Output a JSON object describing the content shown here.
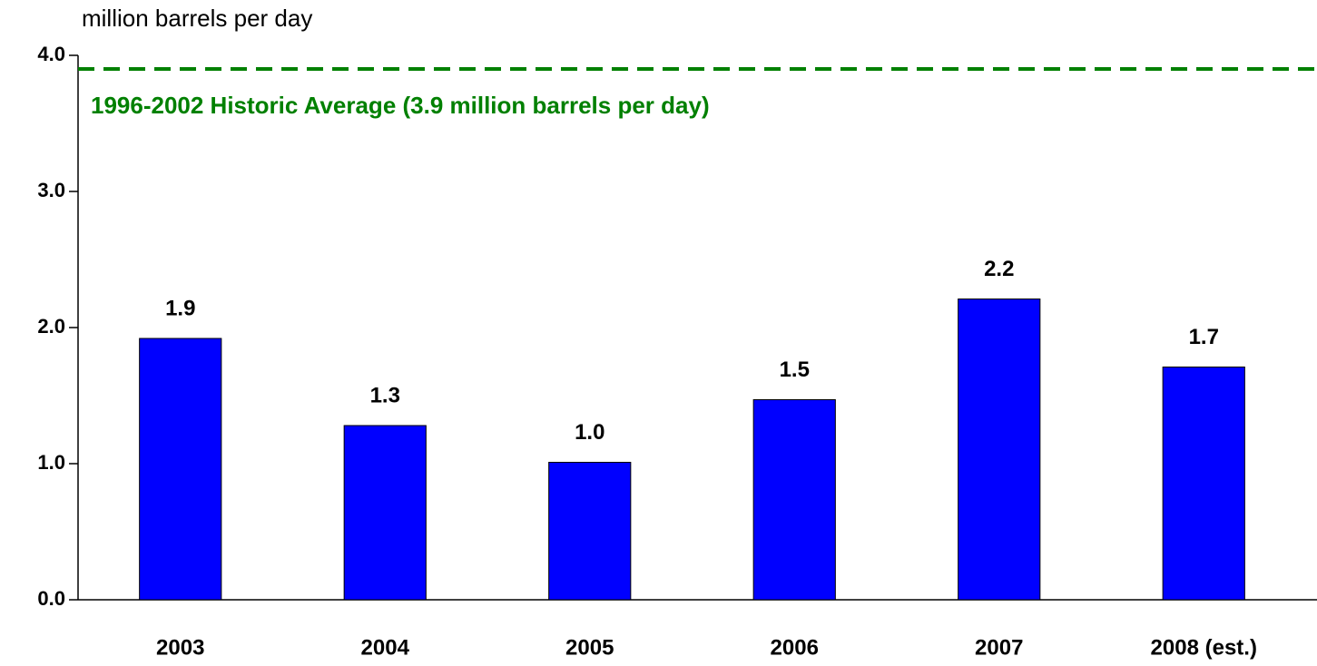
{
  "chart_data": {
    "type": "bar",
    "y_axis_label": "million barrels per day",
    "categories": [
      "2003",
      "2004",
      "2005",
      "2006",
      "2007",
      "2008 (est.)"
    ],
    "values": [
      1.92,
      1.28,
      1.01,
      1.47,
      2.21,
      1.71
    ],
    "value_labels": [
      "1.9",
      "1.3",
      "1.0",
      "1.5",
      "2.2",
      "1.7"
    ],
    "color": "#0000ff",
    "ylim": [
      0,
      4
    ],
    "yticks": [
      {
        "value": 0,
        "label": "0.0"
      },
      {
        "value": 1,
        "label": "1.0"
      },
      {
        "value": 2,
        "label": "2.0"
      },
      {
        "value": 3,
        "label": "3.0"
      },
      {
        "value": 4,
        "label": "4.0"
      }
    ],
    "reference_line": {
      "value": 3.9,
      "label": "1996-2002 Historic Average (3.9 million barrels per day)",
      "color": "#008000"
    },
    "grid": false
  }
}
